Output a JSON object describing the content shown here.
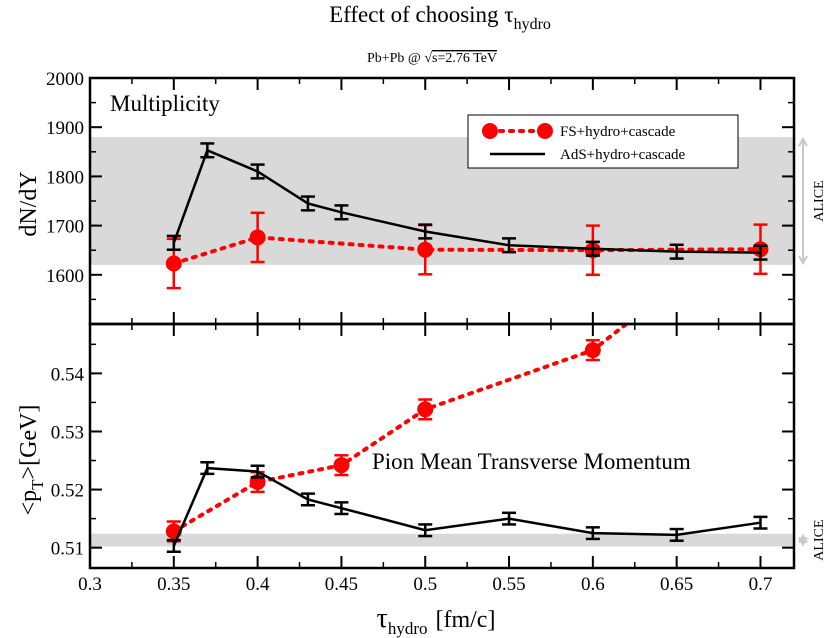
{
  "title": {
    "main": "Effect of choosing τ",
    "sub": "hydro"
  },
  "subtitle": {
    "pre": "Pb+Pb @ ",
    "sqrt": "√",
    "post": "s=2.76 TeV"
  },
  "colors": {
    "fs": "#ff0000",
    "ads": "#000000",
    "band": "#d9d9d9",
    "arrow": "#c8c8c8"
  },
  "chart_data": {
    "type": "line",
    "x_axis": {
      "label_main": "τ",
      "label_sub": "hydro",
      "label_unit": "[fm/c]",
      "xlim": [
        0.3,
        0.72
      ],
      "ticks": [
        "0.3",
        "0.35",
        "0.4",
        "0.45",
        "0.5",
        "0.55",
        "0.6",
        "0.65",
        "0.7"
      ]
    },
    "legend": {
      "fs": "FS+hydro+cascade",
      "ads": "AdS+hydro+cascade"
    },
    "panels": [
      {
        "id": "top",
        "label": "Multiplicity",
        "ylabel": "dN/dY",
        "ylim": [
          1500,
          2000
        ],
        "yticks": [
          "1600",
          "1700",
          "1800",
          "1900",
          "2000"
        ],
        "band": [
          1620,
          1880
        ],
        "band_label": "ALICE",
        "series": [
          {
            "name": "FS+hydro+cascade",
            "style": "dotted-markers",
            "x": [
              0.35,
              0.4,
              0.5,
              0.6,
              0.7
            ],
            "y": [
              1623,
              1676,
              1651,
              1650,
              1652
            ],
            "err": [
              50,
              50,
              50,
              50,
              50
            ]
          },
          {
            "name": "AdS+hydro+cascade",
            "style": "solid",
            "x": [
              0.35,
              0.37,
              0.4,
              0.43,
              0.45,
              0.5,
              0.55,
              0.6,
              0.65,
              0.7
            ],
            "y": [
              1665,
              1853,
              1810,
              1745,
              1727,
              1688,
              1660,
              1653,
              1647,
              1645
            ],
            "err": [
              14,
              14,
              14,
              14,
              14,
              14,
              14,
              14,
              14,
              14
            ]
          }
        ]
      },
      {
        "id": "bottom",
        "label": "Pion Mean Transverse Momentum",
        "ylabel_main": "<p",
        "ylabel_sub": "T",
        "ylabel_post": ">[GeV]",
        "ylim": [
          0.5065,
          0.5485
        ],
        "yticks": [
          "0.51",
          "0.52",
          "0.53",
          "0.54"
        ],
        "band": [
          0.5102,
          0.5124
        ],
        "band_label": "ALICE",
        "series": [
          {
            "name": "FS+hydro+cascade",
            "style": "dotted-markers",
            "x": [
              0.35,
              0.4,
              0.45,
              0.5,
              0.6,
              0.62
            ],
            "y": [
              0.5128,
              0.5213,
              0.5242,
              0.5338,
              0.544,
              0.5485
            ],
            "err": [
              0.0017,
              0.0017,
              0.0017,
              0.0017,
              0.0017,
              null
            ]
          },
          {
            "name": "AdS+hydro+cascade",
            "style": "solid",
            "x": [
              0.35,
              0.37,
              0.4,
              0.43,
              0.45,
              0.5,
              0.55,
              0.6,
              0.65,
              0.7
            ],
            "y": [
              0.5103,
              0.5237,
              0.5231,
              0.5183,
              0.5168,
              0.513,
              0.515,
              0.5125,
              0.5122,
              0.5143
            ],
            "err": [
              0.001,
              0.001,
              0.001,
              0.001,
              0.001,
              0.001,
              0.001,
              0.001,
              0.001,
              0.001
            ]
          }
        ]
      }
    ]
  }
}
